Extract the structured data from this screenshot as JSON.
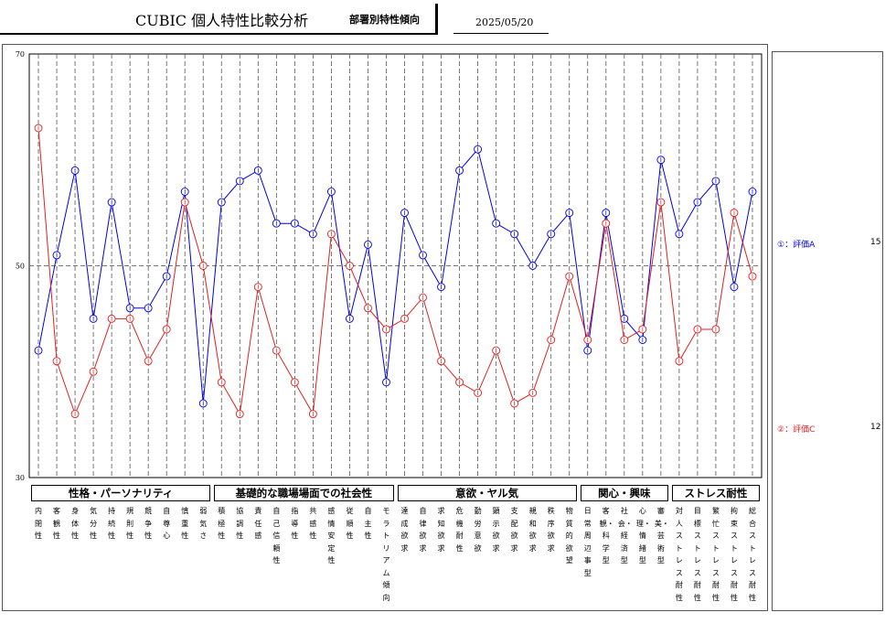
{
  "header": {
    "title": "CUBIC 個人特性比較分析",
    "subtitle": "部署別特性傾向",
    "date": "2025/05/20"
  },
  "chart_data": {
    "type": "line",
    "ylim": [
      30,
      70
    ],
    "yticks": [
      "70",
      "50",
      "30"
    ],
    "reference_line": 50,
    "x": [
      "内閉性",
      "客観性",
      "身体性",
      "気分性",
      "持続性",
      "規則性",
      "競争性",
      "自尊心",
      "慎重性",
      "弱気さ",
      "積極性",
      "協調性",
      "責任感",
      "自己信頼性",
      "指導性",
      "共感性",
      "感情安定性",
      "従順性",
      "自主性",
      "モラトリアム傾向",
      "達成欲求",
      "自律欲求",
      "求知欲求",
      "危機耐性",
      "勤労意欲",
      "顕示欲求",
      "支配欲求",
      "親和欲求",
      "秩序欲求",
      "物質的欲望",
      "日常周辺事型",
      "客観・科学型",
      "社会・経済型",
      "心理・情緒型",
      "審美・芸術型",
      "対人ストレス耐性",
      "目標ストレス耐性",
      "繁忙ストレス耐性",
      "拘束ストレス耐性",
      "総合ストレス耐性"
    ],
    "categories": [
      {
        "name": "性格・パーソナリティ",
        "start": 0,
        "end": 9
      },
      {
        "name": "基礎的な職場場面での社会性",
        "start": 10,
        "end": 19
      },
      {
        "name": "意欲・ヤル気",
        "start": 20,
        "end": 29
      },
      {
        "name": "関心・興味",
        "start": 30,
        "end": 34
      },
      {
        "name": "ストレス耐性",
        "start": 35,
        "end": 39
      }
    ],
    "series": [
      {
        "name": "①：評価A",
        "marker": "①",
        "color": "#0000e0",
        "count": "15",
        "values": [
          42,
          51,
          59,
          45,
          56,
          46,
          46,
          49,
          57,
          37,
          56,
          58,
          59,
          54,
          54,
          53,
          57,
          45,
          52,
          39,
          55,
          51,
          48,
          59,
          61,
          54,
          53,
          50,
          53,
          55,
          42,
          55,
          45,
          43,
          60,
          53,
          56,
          58,
          48,
          57
        ]
      },
      {
        "name": "②：評価C",
        "marker": "②",
        "color": "#e02020",
        "count": "12",
        "values": [
          63,
          41,
          36,
          40,
          45,
          45,
          41,
          44,
          56,
          50,
          39,
          36,
          48,
          42,
          39,
          36,
          53,
          50,
          46,
          44,
          45,
          47,
          41,
          39,
          38,
          42,
          37,
          38,
          43,
          49,
          43,
          54,
          43,
          44,
          56,
          41,
          44,
          44,
          55,
          49
        ]
      }
    ]
  }
}
